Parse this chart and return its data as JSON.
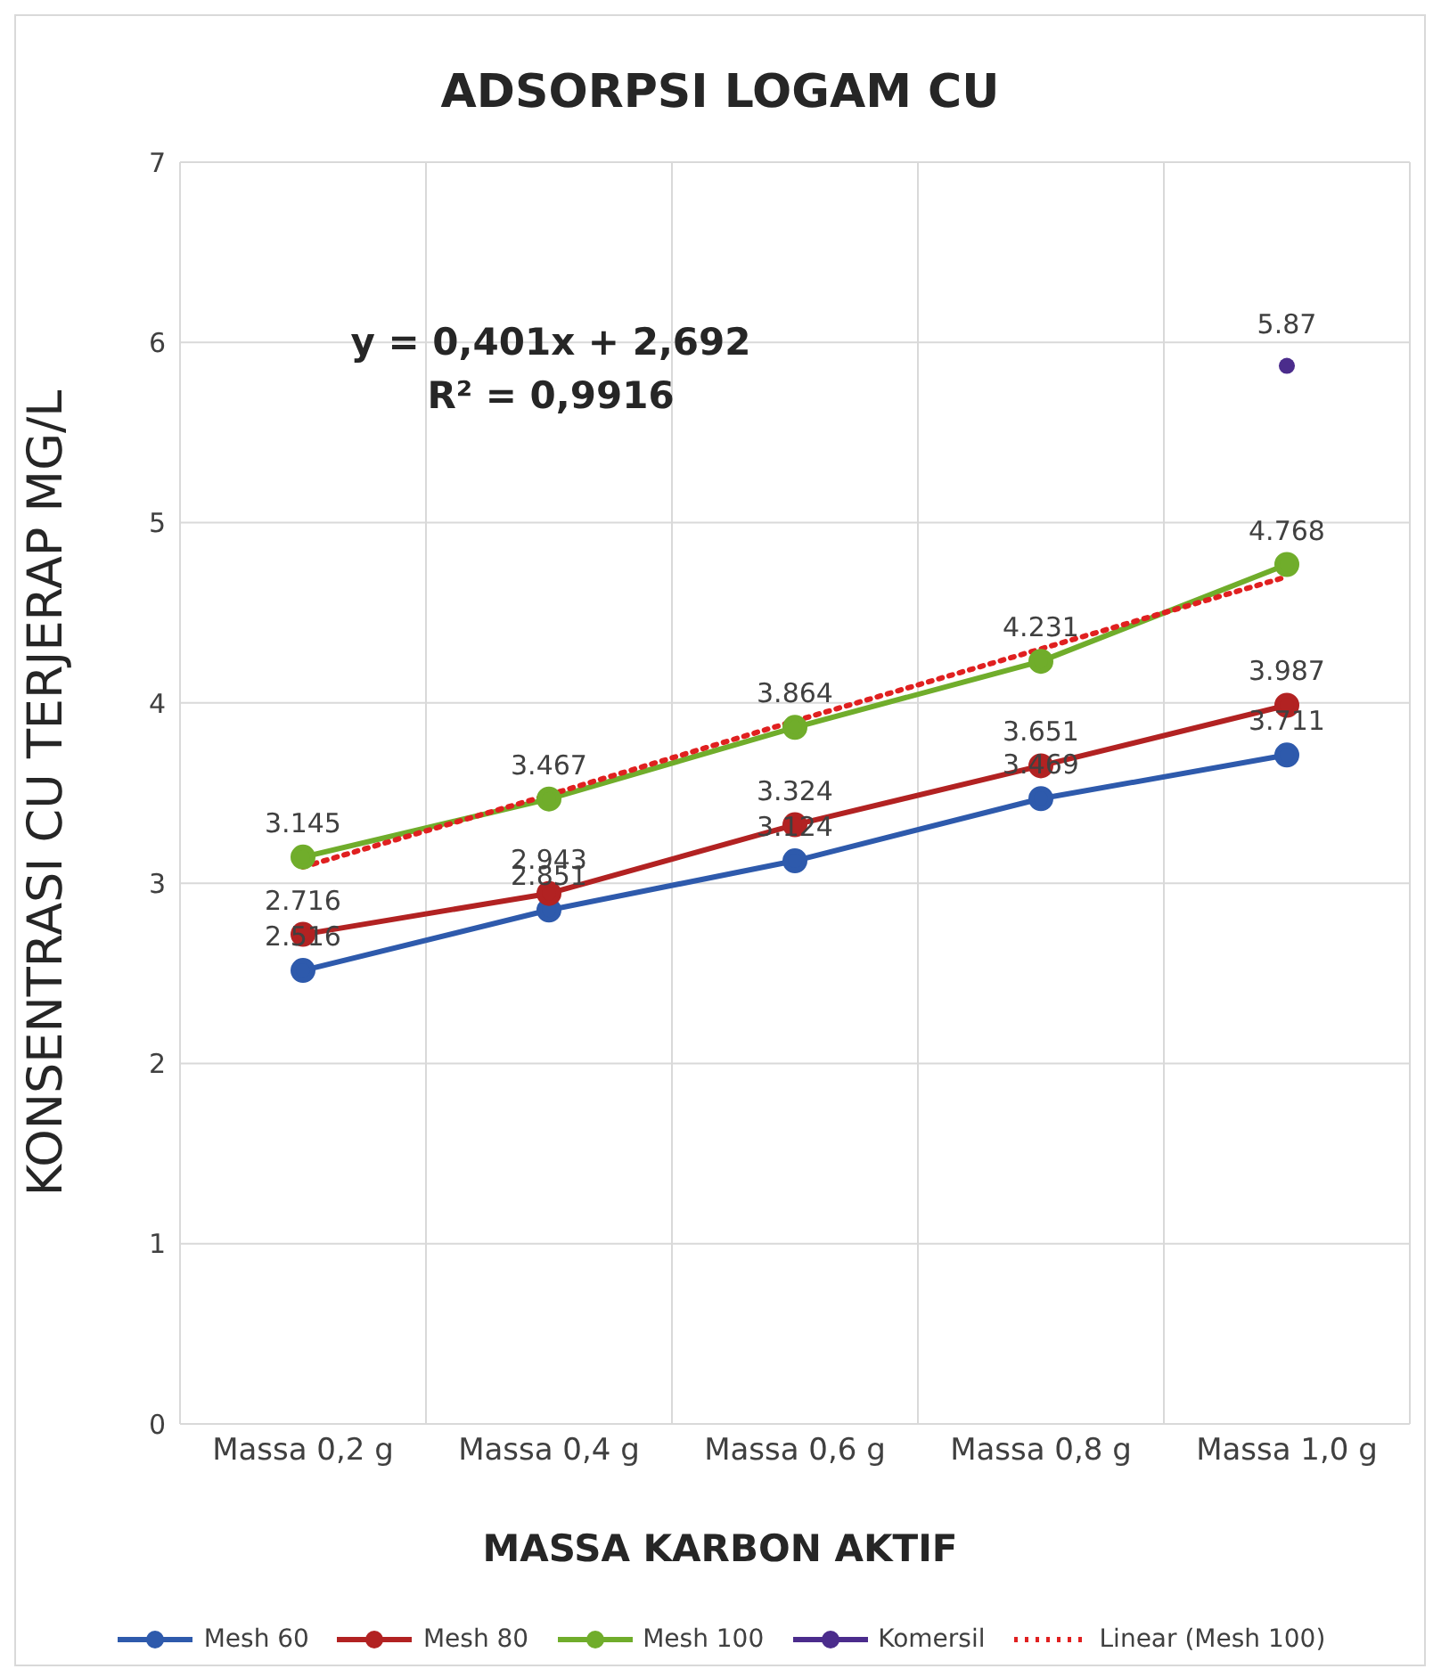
{
  "chart_data": {
    "type": "line",
    "title": "ADSORPSI LOGAM CU",
    "xlabel": "MASSA KARBON AKTIF",
    "ylabel": "KONSENTRASI CU TERJERAP MG/L",
    "categories": [
      "Massa 0,2 g",
      "Massa 0,4 g",
      "Massa 0,6 g",
      "Massa 0,8 g",
      "Massa 1,0 g"
    ],
    "series": [
      {
        "name": "Mesh 60",
        "color": "#2e5aac",
        "values": [
          2.516,
          2.851,
          3.124,
          3.469,
          3.711
        ]
      },
      {
        "name": "Mesh 80",
        "color": "#b22222",
        "values": [
          2.716,
          2.943,
          3.324,
          3.651,
          3.987
        ]
      },
      {
        "name": "Mesh 100",
        "color": "#70ad2b",
        "values": [
          3.145,
          3.467,
          3.864,
          4.231,
          4.768
        ]
      },
      {
        "name": "Komersil",
        "type": "scatter",
        "color": "#4b2c8c",
        "values": [
          null,
          null,
          null,
          null,
          5.87
        ]
      },
      {
        "name": "Linear (Mesh 100)",
        "color": "#e02020",
        "line_style": "dotted",
        "marker": "none",
        "values": [
          3.09,
          3.49,
          3.9,
          4.3,
          4.7
        ],
        "value_labels": [
          null,
          null,
          null,
          null,
          null
        ]
      }
    ],
    "ylim": [
      0,
      7
    ],
    "yticks": [
      0,
      1,
      2,
      3,
      4,
      5,
      6,
      7
    ],
    "grid": true,
    "legend": "bottom",
    "marker": "circle",
    "data_labels": true,
    "annotations": [
      "y = 0,401x + 2,692",
      "R² = 0,9916"
    ]
  }
}
